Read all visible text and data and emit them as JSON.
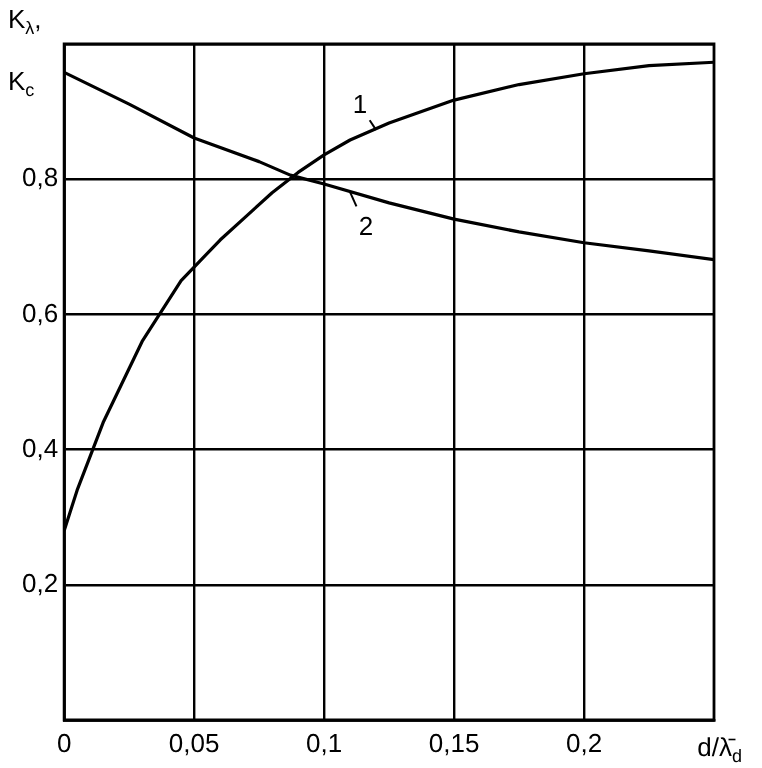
{
  "chart_data": {
    "type": "line",
    "ylabel": "K$_{λ}$, K$_{c}$",
    "xlabel": "d/λ̄$_{d}$",
    "xlim": [
      0,
      0.25
    ],
    "ylim": [
      0,
      1
    ],
    "xticks": [
      0,
      {
        "value": 0.05,
        "label": "0,05"
      },
      {
        "value": 0.1,
        "label": "0,1"
      },
      {
        "value": 0.15,
        "label": "0,15"
      },
      {
        "value": 0.2,
        "label": "0,2"
      }
    ],
    "yticks": [
      {
        "value": 0,
        "label": null
      },
      {
        "value": 0.2,
        "label": "0,2"
      },
      {
        "value": 0.4,
        "label": "0,4"
      },
      {
        "value": 0.6,
        "label": "0,6"
      },
      {
        "value": 0.8,
        "label": "0,8"
      },
      {
        "value": 1,
        "label": null
      }
    ],
    "grid": true,
    "legend": false,
    "marker": "none",
    "line_style": "solid",
    "series": [
      {
        "color": "#000000",
        "x": [
          0,
          0.005,
          0.01,
          0.015,
          0.02,
          0.025,
          0.03,
          0.035,
          0.04,
          0.045,
          0.05,
          0.06,
          0.07,
          0.08,
          0.09,
          0.1,
          0.11,
          0.125,
          0.15,
          0.175,
          0.2,
          0.225,
          0.25
        ],
        "values": [
          0.28,
          0.34,
          0.39,
          0.44,
          0.48,
          0.52,
          0.56,
          0.59,
          0.62,
          0.65,
          0.67,
          0.71,
          0.745,
          0.78,
          0.81,
          0.836,
          0.858,
          0.883,
          0.917,
          0.94,
          0.956,
          0.968,
          0.973
        ]
      },
      {
        "color": "#000000",
        "x": [
          0,
          0.025,
          0.05,
          0.075,
          0.087,
          0.1,
          0.125,
          0.15,
          0.175,
          0.2,
          0.225,
          0.25
        ],
        "values": [
          0.958,
          0.911,
          0.861,
          0.826,
          0.806,
          0.793,
          0.765,
          0.741,
          0.722,
          0.706,
          0.694,
          0.681
        ]
      }
    ],
    "annotations": [
      {
        "text": "1",
        "x": 0.12,
        "y": 0.873
      },
      {
        "text": "2",
        "x": 0.11,
        "y": 0.781
      }
    ]
  }
}
